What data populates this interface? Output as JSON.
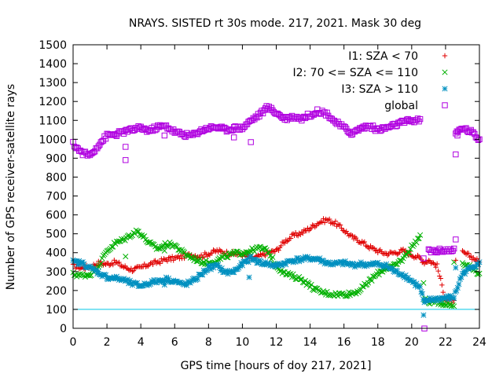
{
  "chart_data": {
    "type": "scatter",
    "title": "NRAYS. SISTED rt 30s mode. 217, 2021. Mask 30 deg",
    "xlabel": "GPS time [hours of doy 217, 2021]",
    "ylabel": "Number of GPS receiver-satellite rays",
    "xlim": [
      0,
      24
    ],
    "ylim": [
      0,
      1500
    ],
    "xticks": [
      0,
      2,
      4,
      6,
      8,
      10,
      12,
      14,
      16,
      18,
      20,
      22,
      24
    ],
    "yticks": [
      0,
      100,
      200,
      300,
      400,
      500,
      600,
      700,
      800,
      900,
      1000,
      1100,
      1200,
      1300,
      1400,
      1500
    ],
    "legend_position": "top-right",
    "reference_line": {
      "y": 100,
      "color": "#00c8e8"
    },
    "series": [
      {
        "name": "I1: SZA < 70",
        "color": "#e00000",
        "marker": "plus",
        "points": [
          [
            0,
            330
          ],
          [
            0.5,
            320
          ],
          [
            1,
            325
          ],
          [
            1.5,
            345
          ],
          [
            2,
            340
          ],
          [
            2.5,
            350
          ],
          [
            3,
            325
          ],
          [
            3.5,
            310
          ],
          [
            4,
            320
          ],
          [
            4.5,
            340
          ],
          [
            5,
            350
          ],
          [
            5.5,
            365
          ],
          [
            6,
            370
          ],
          [
            6.5,
            380
          ],
          [
            7,
            390
          ],
          [
            7.5,
            380
          ],
          [
            8,
            395
          ],
          [
            8.5,
            410
          ],
          [
            9,
            400
          ],
          [
            9.5,
            395
          ],
          [
            10,
            390
          ],
          [
            10.5,
            370
          ],
          [
            11,
            380
          ],
          [
            11.5,
            400
          ],
          [
            12,
            410
          ],
          [
            12.5,
            460
          ],
          [
            13,
            490
          ],
          [
            13.5,
            505
          ],
          [
            14,
            530
          ],
          [
            14.5,
            560
          ],
          [
            15,
            575
          ],
          [
            15.5,
            555
          ],
          [
            16,
            520
          ],
          [
            16.5,
            480
          ],
          [
            17,
            460
          ],
          [
            17.5,
            430
          ],
          [
            18,
            410
          ],
          [
            18.5,
            395
          ],
          [
            19,
            400
          ],
          [
            19.5,
            410
          ],
          [
            20,
            390
          ],
          [
            20.5,
            370
          ],
          [
            20.75,
            350
          ],
          [
            21,
            360
          ],
          [
            21.5,
            330
          ],
          [
            22,
            150
          ],
          [
            22.5,
            140
          ],
          [
            23,
            400
          ],
          [
            23.5,
            380
          ],
          [
            24,
            350
          ]
        ]
      },
      {
        "name": "I2: 70 <= SZA <= 110",
        "color": "#00b000",
        "marker": "cross",
        "points": [
          [
            0,
            285
          ],
          [
            0.5,
            280
          ],
          [
            1,
            285
          ],
          [
            1.5,
            330
          ],
          [
            2,
            410
          ],
          [
            2.5,
            450
          ],
          [
            3,
            470
          ],
          [
            3.5,
            500
          ],
          [
            3.8,
            515
          ],
          [
            4,
            500
          ],
          [
            4.5,
            450
          ],
          [
            5,
            420
          ],
          [
            5.5,
            445
          ],
          [
            6,
            440
          ],
          [
            6.5,
            400
          ],
          [
            7,
            375
          ],
          [
            7.5,
            355
          ],
          [
            8,
            345
          ],
          [
            8.5,
            360
          ],
          [
            9,
            380
          ],
          [
            9.5,
            395
          ],
          [
            10,
            400
          ],
          [
            10.5,
            410
          ],
          [
            11,
            425
          ],
          [
            11.5,
            410
          ],
          [
            12,
            330
          ],
          [
            12.5,
            290
          ],
          [
            13,
            275
          ],
          [
            13.5,
            260
          ],
          [
            14,
            225
          ],
          [
            14.5,
            195
          ],
          [
            15,
            185
          ],
          [
            15.5,
            180
          ],
          [
            16,
            180
          ],
          [
            16.5,
            185
          ],
          [
            17,
            205
          ],
          [
            17.5,
            250
          ],
          [
            18,
            290
          ],
          [
            18.5,
            320
          ],
          [
            19,
            330
          ],
          [
            19.5,
            370
          ],
          [
            20,
            430
          ],
          [
            20.5,
            490
          ],
          [
            20.75,
            150
          ],
          [
            21,
            140
          ],
          [
            21.5,
            140
          ],
          [
            22,
            130
          ],
          [
            22.5,
            120
          ],
          [
            23,
            350
          ],
          [
            23.5,
            320
          ],
          [
            24,
            290
          ]
        ]
      },
      {
        "name": "I3: SZA > 110",
        "color": "#0090c0",
        "marker": "star",
        "points": [
          [
            0,
            350
          ],
          [
            0.5,
            345
          ],
          [
            1,
            320
          ],
          [
            1.5,
            295
          ],
          [
            2,
            270
          ],
          [
            2.5,
            265
          ],
          [
            3,
            255
          ],
          [
            3.5,
            235
          ],
          [
            4,
            225
          ],
          [
            4.5,
            240
          ],
          [
            5,
            250
          ],
          [
            5.5,
            260
          ],
          [
            6,
            250
          ],
          [
            6.5,
            230
          ],
          [
            7,
            245
          ],
          [
            7.5,
            280
          ],
          [
            8,
            320
          ],
          [
            8.5,
            330
          ],
          [
            9,
            295
          ],
          [
            9.5,
            300
          ],
          [
            10,
            340
          ],
          [
            10.5,
            370
          ],
          [
            11,
            350
          ],
          [
            11.5,
            340
          ],
          [
            12,
            330
          ],
          [
            12.5,
            345
          ],
          [
            13,
            360
          ],
          [
            13.5,
            365
          ],
          [
            14,
            370
          ],
          [
            14.5,
            365
          ],
          [
            15,
            345
          ],
          [
            15.5,
            340
          ],
          [
            16,
            345
          ],
          [
            16.5,
            335
          ],
          [
            17,
            340
          ],
          [
            17.5,
            335
          ],
          [
            18,
            340
          ],
          [
            18.5,
            330
          ],
          [
            19,
            300
          ],
          [
            19.5,
            285
          ],
          [
            20,
            250
          ],
          [
            20.5,
            215
          ],
          [
            20.75,
            130
          ],
          [
            21,
            150
          ],
          [
            21.5,
            155
          ],
          [
            22,
            160
          ],
          [
            22.5,
            165
          ],
          [
            23,
            290
          ],
          [
            23.5,
            320
          ],
          [
            24,
            350
          ]
        ]
      },
      {
        "name": "global",
        "color": "#b000e0",
        "marker": "square",
        "points": [
          [
            0,
            975
          ],
          [
            0.5,
            930
          ],
          [
            1,
            915
          ],
          [
            1.5,
            970
          ],
          [
            2,
            1020
          ],
          [
            2.5,
            1025
          ],
          [
            3,
            1040
          ],
          [
            3.5,
            1050
          ],
          [
            4,
            1060
          ],
          [
            4.5,
            1045
          ],
          [
            5,
            1065
          ],
          [
            5.5,
            1070
          ],
          [
            6,
            1040
          ],
          [
            6.5,
            1025
          ],
          [
            7,
            1020
          ],
          [
            7.5,
            1045
          ],
          [
            8,
            1060
          ],
          [
            8.5,
            1065
          ],
          [
            9,
            1050
          ],
          [
            9.5,
            1060
          ],
          [
            10,
            1060
          ],
          [
            10.5,
            1100
          ],
          [
            11,
            1130
          ],
          [
            11.5,
            1170
          ],
          [
            12,
            1140
          ],
          [
            12.5,
            1110
          ],
          [
            13,
            1120
          ],
          [
            13.5,
            1110
          ],
          [
            14,
            1130
          ],
          [
            14.5,
            1150
          ],
          [
            15,
            1135
          ],
          [
            15.5,
            1090
          ],
          [
            16,
            1060
          ],
          [
            16.5,
            1030
          ],
          [
            17,
            1060
          ],
          [
            17.5,
            1070
          ],
          [
            18,
            1050
          ],
          [
            18.5,
            1060
          ],
          [
            19,
            1075
          ],
          [
            19.5,
            1090
          ],
          [
            20,
            1100
          ],
          [
            20.5,
            1100
          ],
          [
            20.75,
            0
          ],
          [
            21,
            410
          ],
          [
            21.5,
            410
          ],
          [
            22,
            415
          ],
          [
            22.5,
            410
          ],
          [
            22.6,
            1030
          ],
          [
            23,
            1060
          ],
          [
            23.5,
            1040
          ],
          [
            24,
            1000
          ]
        ]
      }
    ],
    "outliers": [
      {
        "series": "global",
        "points": [
          [
            3.1,
            960
          ],
          [
            3.1,
            890
          ],
          [
            5.4,
            1020
          ],
          [
            9.5,
            1010
          ],
          [
            10.5,
            985
          ],
          [
            20.7,
            370
          ],
          [
            22.6,
            920
          ],
          [
            22.6,
            470
          ],
          [
            22.7,
            1020
          ]
        ]
      },
      {
        "series": "I2: 70 <= SZA <= 110",
        "points": [
          [
            3.1,
            380
          ],
          [
            5.4,
            410
          ],
          [
            20.7,
            240
          ],
          [
            22.5,
            350
          ]
        ]
      },
      {
        "series": "I3: SZA > 110",
        "points": [
          [
            5.4,
            230
          ],
          [
            10.4,
            270
          ],
          [
            20.7,
            70
          ],
          [
            22.6,
            320
          ]
        ]
      },
      {
        "series": "I1: SZA < 70",
        "points": [
          [
            22.6,
            360
          ]
        ]
      }
    ]
  }
}
